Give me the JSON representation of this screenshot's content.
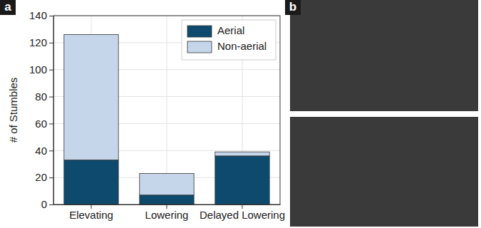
{
  "chart_data": {
    "type": "bar",
    "stacked": true,
    "y_label": "# of Stumbles",
    "annotations": [
      "a",
      "b"
    ],
    "categories": [
      "Elevating",
      "Lowering",
      "Delayed Lowering"
    ],
    "series": [
      {
        "name": "Aerial",
        "color": "#0d4a6e",
        "values": [
          33,
          7,
          36
        ]
      },
      {
        "name": "Non-aerial",
        "color": "#c6d6ea",
        "values": [
          93,
          16,
          3
        ]
      }
    ],
    "ylim": [
      0,
      140
    ],
    "yticks": [
      0,
      20,
      40,
      60,
      80,
      100,
      120,
      140
    ],
    "grid": true,
    "legend": "upper right"
  }
}
